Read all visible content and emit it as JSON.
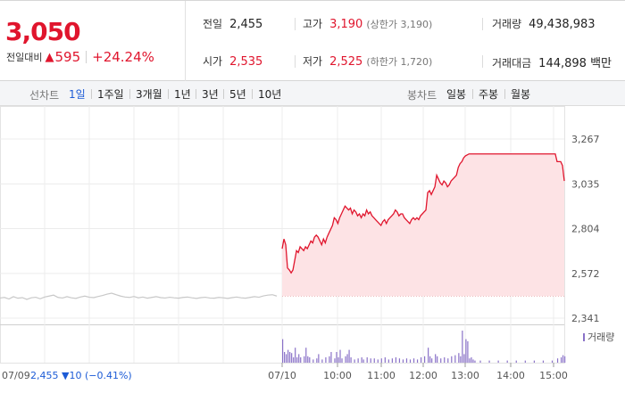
{
  "summary": {
    "price": "3,050",
    "change_label": "전일대비",
    "change_arrow": "▲",
    "change_value": "595",
    "change_pct": "+24.24%",
    "prev_close_label": "전일",
    "prev_close": "2,455",
    "open_label": "시가",
    "open": "2,535",
    "high_label": "고가",
    "high": "3,190",
    "high_note": "(상한가 3,190)",
    "low_label": "저가",
    "low": "2,525",
    "low_note": "(하한가 1,720)",
    "volume_label": "거래량",
    "volume": "49,438,983",
    "amount_label": "거래대금",
    "amount": "144,898 백만"
  },
  "tabs": {
    "line_label": "선차트",
    "periods": [
      "1일",
      "1주일",
      "3개월",
      "1년",
      "3년",
      "5년",
      "10년"
    ],
    "active_period": "1일",
    "candle_label": "봉차트",
    "candles": [
      "일봉",
      "주봉",
      "월봉"
    ]
  },
  "colors": {
    "up": "#e0152d",
    "up_fill": "#fde3e5",
    "prev_line": "#c8c8c8",
    "volume_bar": "#8a72c8",
    "active_tab": "#1c5bd6"
  },
  "chart_data": {
    "type": "area",
    "y_ticks": [
      "3,267",
      "3,035",
      "2,804",
      "2,572",
      "2,341"
    ],
    "ylim": [
      2341,
      3267
    ],
    "prev_close_level": 2455,
    "x_ticks": [
      "07/10",
      "10:00",
      "11:00",
      "12:00",
      "13:00",
      "14:00",
      "15:00"
    ],
    "prev_day_label": "07/09",
    "prev_day_value": "2,455",
    "prev_day_change": "▼10",
    "prev_day_pct": "(−0.41%)",
    "volume_legend": "거래량",
    "prev_day_series": [
      [
        0,
        2445
      ],
      [
        3,
        2448
      ],
      [
        6,
        2440
      ],
      [
        9,
        2452
      ],
      [
        12,
        2444
      ],
      [
        15,
        2447
      ],
      [
        18,
        2438
      ],
      [
        21,
        2446
      ],
      [
        24,
        2449
      ],
      [
        27,
        2441
      ],
      [
        30,
        2450
      ],
      [
        33,
        2455
      ],
      [
        36,
        2460
      ],
      [
        39,
        2448
      ],
      [
        42,
        2445
      ],
      [
        45,
        2452
      ],
      [
        48,
        2446
      ],
      [
        51,
        2443
      ],
      [
        54,
        2450
      ],
      [
        57,
        2455
      ],
      [
        60,
        2449
      ],
      [
        63,
        2447
      ],
      [
        66,
        2453
      ],
      [
        69,
        2458
      ],
      [
        72,
        2465
      ],
      [
        75,
        2470
      ],
      [
        78,
        2462
      ],
      [
        81,
        2455
      ],
      [
        84,
        2450
      ],
      [
        87,
        2448
      ],
      [
        90,
        2453
      ],
      [
        93,
        2446
      ],
      [
        96,
        2450
      ],
      [
        99,
        2444
      ],
      [
        102,
        2448
      ],
      [
        105,
        2452
      ],
      [
        108,
        2447
      ],
      [
        111,
        2445
      ],
      [
        114,
        2449
      ],
      [
        117,
        2446
      ],
      [
        120,
        2444
      ],
      [
        123,
        2448
      ],
      [
        126,
        2450
      ],
      [
        129,
        2446
      ],
      [
        132,
        2443
      ],
      [
        135,
        2447
      ],
      [
        138,
        2449
      ],
      [
        141,
        2445
      ],
      [
        144,
        2444
      ],
      [
        147,
        2448
      ],
      [
        150,
        2446
      ],
      [
        153,
        2443
      ],
      [
        156,
        2447
      ],
      [
        159,
        2450
      ],
      [
        162,
        2446
      ],
      [
        165,
        2444
      ],
      [
        168,
        2448
      ],
      [
        171,
        2452
      ],
      [
        174,
        2449
      ],
      [
        177,
        2456
      ],
      [
        180,
        2460
      ],
      [
        183,
        2462
      ],
      [
        186,
        2455
      ]
    ],
    "intraday_series": [
      [
        0,
        2700
      ],
      [
        2,
        2750
      ],
      [
        4,
        2720
      ],
      [
        6,
        2600
      ],
      [
        8,
        2590
      ],
      [
        10,
        2575
      ],
      [
        12,
        2590
      ],
      [
        14,
        2640
      ],
      [
        16,
        2690
      ],
      [
        18,
        2680
      ],
      [
        20,
        2710
      ],
      [
        22,
        2700
      ],
      [
        24,
        2690
      ],
      [
        26,
        2710
      ],
      [
        28,
        2700
      ],
      [
        30,
        2720
      ],
      [
        32,
        2740
      ],
      [
        34,
        2730
      ],
      [
        36,
        2760
      ],
      [
        38,
        2770
      ],
      [
        40,
        2760
      ],
      [
        42,
        2740
      ],
      [
        44,
        2720
      ],
      [
        46,
        2750
      ],
      [
        48,
        2730
      ],
      [
        50,
        2760
      ],
      [
        52,
        2780
      ],
      [
        54,
        2800
      ],
      [
        56,
        2820
      ],
      [
        58,
        2860
      ],
      [
        60,
        2850
      ],
      [
        62,
        2830
      ],
      [
        64,
        2860
      ],
      [
        66,
        2880
      ],
      [
        68,
        2900
      ],
      [
        70,
        2920
      ],
      [
        72,
        2910
      ],
      [
        74,
        2900
      ],
      [
        76,
        2910
      ],
      [
        78,
        2880
      ],
      [
        80,
        2900
      ],
      [
        82,
        2890
      ],
      [
        84,
        2870
      ],
      [
        86,
        2880
      ],
      [
        88,
        2860
      ],
      [
        90,
        2880
      ],
      [
        92,
        2870
      ],
      [
        94,
        2900
      ],
      [
        96,
        2880
      ],
      [
        98,
        2890
      ],
      [
        100,
        2870
      ],
      [
        102,
        2860
      ],
      [
        104,
        2850
      ],
      [
        106,
        2840
      ],
      [
        108,
        2830
      ],
      [
        110,
        2820
      ],
      [
        112,
        2840
      ],
      [
        114,
        2850
      ],
      [
        116,
        2830
      ],
      [
        118,
        2850
      ],
      [
        120,
        2860
      ],
      [
        122,
        2870
      ],
      [
        124,
        2880
      ],
      [
        126,
        2900
      ],
      [
        128,
        2890
      ],
      [
        130,
        2870
      ],
      [
        132,
        2880
      ],
      [
        134,
        2880
      ],
      [
        136,
        2860
      ],
      [
        138,
        2850
      ],
      [
        140,
        2840
      ],
      [
        142,
        2830
      ],
      [
        144,
        2850
      ],
      [
        146,
        2860
      ],
      [
        148,
        2850
      ],
      [
        150,
        2860
      ],
      [
        152,
        2850
      ],
      [
        154,
        2870
      ],
      [
        156,
        2880
      ],
      [
        158,
        2890
      ],
      [
        160,
        2900
      ],
      [
        162,
        2990
      ],
      [
        164,
        3000
      ],
      [
        166,
        2980
      ],
      [
        168,
        3000
      ],
      [
        170,
        3020
      ],
      [
        172,
        3080
      ],
      [
        174,
        3060
      ],
      [
        176,
        3040
      ],
      [
        178,
        3030
      ],
      [
        180,
        3050
      ],
      [
        182,
        3040
      ],
      [
        184,
        3020
      ],
      [
        186,
        3030
      ],
      [
        188,
        3050
      ],
      [
        190,
        3060
      ],
      [
        192,
        3070
      ],
      [
        194,
        3080
      ],
      [
        196,
        3120
      ],
      [
        198,
        3140
      ],
      [
        200,
        3150
      ],
      [
        202,
        3170
      ],
      [
        204,
        3180
      ],
      [
        206,
        3185
      ],
      [
        208,
        3190
      ],
      [
        210,
        3190
      ],
      [
        212,
        3190
      ],
      [
        214,
        3190
      ],
      [
        216,
        3190
      ],
      [
        218,
        3190
      ],
      [
        220,
        3190
      ],
      [
        222,
        3190
      ],
      [
        224,
        3190
      ],
      [
        226,
        3190
      ],
      [
        228,
        3190
      ],
      [
        230,
        3190
      ],
      [
        232,
        3190
      ],
      [
        234,
        3190
      ],
      [
        236,
        3190
      ],
      [
        238,
        3190
      ],
      [
        240,
        3190
      ],
      [
        242,
        3190
      ],
      [
        244,
        3190
      ],
      [
        246,
        3190
      ],
      [
        248,
        3190
      ],
      [
        250,
        3190
      ],
      [
        252,
        3190
      ],
      [
        254,
        3190
      ],
      [
        256,
        3190
      ],
      [
        258,
        3190
      ],
      [
        260,
        3190
      ],
      [
        262,
        3190
      ],
      [
        264,
        3190
      ],
      [
        266,
        3190
      ],
      [
        268,
        3190
      ],
      [
        270,
        3190
      ],
      [
        272,
        3190
      ],
      [
        274,
        3190
      ],
      [
        276,
        3190
      ],
      [
        278,
        3190
      ],
      [
        280,
        3190
      ],
      [
        282,
        3190
      ],
      [
        284,
        3190
      ],
      [
        286,
        3190
      ],
      [
        288,
        3190
      ],
      [
        290,
        3190
      ],
      [
        292,
        3190
      ],
      [
        294,
        3190
      ],
      [
        296,
        3190
      ],
      [
        298,
        3190
      ],
      [
        300,
        3190
      ],
      [
        302,
        3190
      ],
      [
        304,
        3190
      ],
      [
        306,
        3150
      ],
      [
        308,
        3150
      ],
      [
        310,
        3150
      ],
      [
        312,
        3130
      ],
      [
        314,
        3050
      ]
    ],
    "intraday_minutes_total": 314,
    "prev_day_minutes_total": 186,
    "volume_series": [
      [
        0,
        0.22
      ],
      [
        2,
        0.1
      ],
      [
        4,
        0.08
      ],
      [
        6,
        0.12
      ],
      [
        8,
        0.1
      ],
      [
        10,
        0.09
      ],
      [
        12,
        0.05
      ],
      [
        14,
        0.14
      ],
      [
        16,
        0.05
      ],
      [
        18,
        0.08
      ],
      [
        20,
        0.05
      ],
      [
        24,
        0.06
      ],
      [
        26,
        0.14
      ],
      [
        28,
        0.06
      ],
      [
        30,
        0.05
      ],
      [
        34,
        0.03
      ],
      [
        38,
        0.04
      ],
      [
        40,
        0.08
      ],
      [
        44,
        0.03
      ],
      [
        48,
        0.05
      ],
      [
        52,
        0.06
      ],
      [
        54,
        0.1
      ],
      [
        58,
        0.04
      ],
      [
        60,
        0.1
      ],
      [
        62,
        0.05
      ],
      [
        64,
        0.12
      ],
      [
        66,
        0.04
      ],
      [
        70,
        0.06
      ],
      [
        72,
        0.08
      ],
      [
        74,
        0.12
      ],
      [
        76,
        0.05
      ],
      [
        80,
        0.03
      ],
      [
        84,
        0.04
      ],
      [
        88,
        0.05
      ],
      [
        90,
        0.03
      ],
      [
        94,
        0.05
      ],
      [
        98,
        0.04
      ],
      [
        102,
        0.04
      ],
      [
        106,
        0.03
      ],
      [
        110,
        0.04
      ],
      [
        114,
        0.05
      ],
      [
        118,
        0.03
      ],
      [
        122,
        0.04
      ],
      [
        126,
        0.05
      ],
      [
        130,
        0.04
      ],
      [
        134,
        0.03
      ],
      [
        138,
        0.04
      ],
      [
        142,
        0.03
      ],
      [
        146,
        0.04
      ],
      [
        150,
        0.03
      ],
      [
        154,
        0.05
      ],
      [
        158,
        0.06
      ],
      [
        162,
        0.14
      ],
      [
        164,
        0.06
      ],
      [
        166,
        0.04
      ],
      [
        170,
        0.08
      ],
      [
        172,
        0.06
      ],
      [
        176,
        0.04
      ],
      [
        180,
        0.05
      ],
      [
        184,
        0.04
      ],
      [
        188,
        0.06
      ],
      [
        192,
        0.07
      ],
      [
        196,
        0.09
      ],
      [
        198,
        0.06
      ],
      [
        200,
        0.3
      ],
      [
        202,
        0.08
      ],
      [
        204,
        0.22
      ],
      [
        206,
        0.2
      ],
      [
        208,
        0.04
      ],
      [
        210,
        0.05
      ],
      [
        212,
        0.03
      ],
      [
        214,
        0.02
      ],
      [
        220,
        0.02
      ],
      [
        230,
        0.02
      ],
      [
        240,
        0.02
      ],
      [
        250,
        0.02
      ],
      [
        260,
        0.02
      ],
      [
        270,
        0.02
      ],
      [
        280,
        0.02
      ],
      [
        290,
        0.02
      ],
      [
        300,
        0.02
      ],
      [
        306,
        0.04
      ],
      [
        310,
        0.05
      ],
      [
        312,
        0.07
      ],
      [
        314,
        0.06
      ]
    ]
  }
}
